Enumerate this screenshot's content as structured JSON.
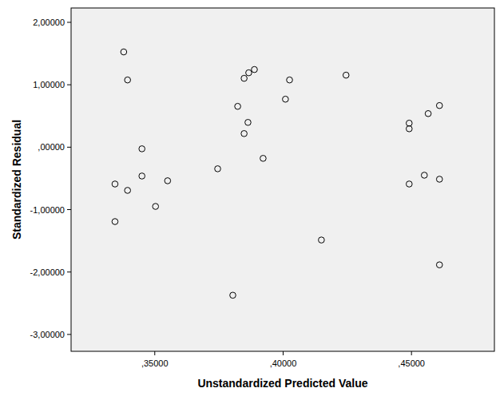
{
  "chart_data": {
    "type": "scatter",
    "x_label": "Unstandardized Predicted Value",
    "y_label": "Standardized Residual",
    "x": [
      0.3379,
      0.3394,
      0.345,
      0.3345,
      0.345,
      0.3394,
      0.355,
      0.3503,
      0.3345,
      0.3745,
      0.3823,
      0.3848,
      0.3866,
      0.3888,
      0.3863,
      0.3848,
      0.3922,
      0.3804,
      0.4009,
      0.4025,
      0.4245,
      0.4149,
      0.4491,
      0.4491,
      0.4565,
      0.4609,
      0.455,
      0.4491,
      0.4609,
      0.4609
    ],
    "values": [
      1.526,
      1.077,
      -0.026,
      -0.59,
      -0.462,
      -0.692,
      -0.538,
      -0.949,
      -1.192,
      -0.346,
      0.654,
      1.103,
      1.192,
      1.244,
      0.397,
      0.218,
      -0.179,
      -2.372,
      0.769,
      1.077,
      1.154,
      -1.487,
      0.295,
      0.385,
      0.538,
      0.667,
      -0.449,
      -0.59,
      -0.513,
      -1.885
    ],
    "xlim": [
      0.3174,
      0.4823
    ],
    "ylim": [
      -3.27,
      2.23
    ],
    "xticks": [
      {
        "value": 0.35,
        "label": ",35000"
      },
      {
        "value": 0.4,
        "label": ",40000"
      },
      {
        "value": 0.45,
        "label": ",45000"
      }
    ],
    "yticks": [
      {
        "value": -3,
        "label": "-3,00000"
      },
      {
        "value": -2,
        "label": "-2,00000"
      },
      {
        "value": -1,
        "label": "-1,00000"
      },
      {
        "value": 0,
        "label": ",00000"
      },
      {
        "value": 1,
        "label": "1,00000"
      },
      {
        "value": 2,
        "label": "2,00000"
      }
    ],
    "marker": "circle",
    "grid": false
  }
}
